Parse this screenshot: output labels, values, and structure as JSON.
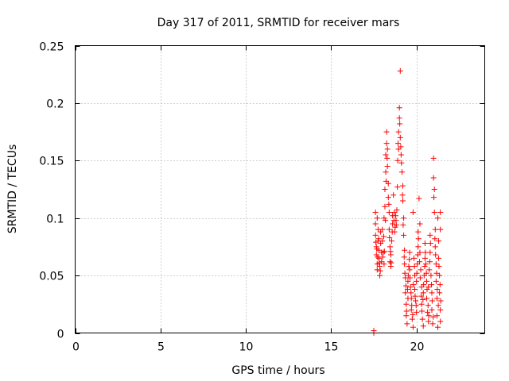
{
  "chart_data": {
    "type": "scatter",
    "title": "Day 317 of 2011, SRMTID for receiver mars",
    "xlabel": "GPS time / hours",
    "ylabel": "SRMTID / TECUs",
    "xlim": [
      0,
      24
    ],
    "ylim": [
      0,
      0.25
    ],
    "xticks": [
      0,
      5,
      10,
      15,
      20
    ],
    "xtick_labels": [
      "0",
      "5",
      "10",
      "15",
      "20"
    ],
    "yticks": [
      0,
      0.05,
      0.1,
      0.15,
      0.2,
      0.25
    ],
    "ytick_labels": [
      "0",
      "0.05",
      "0.1",
      "0.15",
      "0.2",
      "0.25"
    ],
    "grid": true,
    "marker": "+",
    "color": "#ff0000",
    "series": [
      {
        "name": "SRMTID",
        "points": [
          [
            17.5,
            0.0
          ],
          [
            17.5,
            0.002
          ],
          [
            17.6,
            0.105
          ],
          [
            17.6,
            0.095
          ],
          [
            17.6,
            0.085
          ],
          [
            17.65,
            0.075
          ],
          [
            17.65,
            0.068
          ],
          [
            17.7,
            0.06
          ],
          [
            17.7,
            0.055
          ],
          [
            17.7,
            0.1
          ],
          [
            17.75,
            0.09
          ],
          [
            17.75,
            0.08
          ],
          [
            17.8,
            0.072
          ],
          [
            17.8,
            0.065
          ],
          [
            17.85,
            0.058
          ],
          [
            17.85,
            0.05
          ],
          [
            17.9,
            0.088
          ],
          [
            17.9,
            0.078
          ],
          [
            17.95,
            0.07
          ],
          [
            17.95,
            0.062
          ],
          [
            18.0,
            0.08
          ],
          [
            18.0,
            0.09
          ],
          [
            18.05,
            0.07
          ],
          [
            18.1,
            0.06
          ],
          [
            18.1,
            0.1
          ],
          [
            18.15,
            0.11
          ],
          [
            18.15,
            0.125
          ],
          [
            18.2,
            0.14
          ],
          [
            18.2,
            0.155
          ],
          [
            18.25,
            0.165
          ],
          [
            18.25,
            0.175
          ],
          [
            18.3,
            0.16
          ],
          [
            18.3,
            0.145
          ],
          [
            18.35,
            0.13
          ],
          [
            18.35,
            0.118
          ],
          [
            18.4,
            0.105
          ],
          [
            18.4,
            0.09
          ],
          [
            18.45,
            0.075
          ],
          [
            18.45,
            0.062
          ],
          [
            18.5,
            0.058
          ],
          [
            18.5,
            0.068
          ],
          [
            18.55,
            0.08
          ],
          [
            18.6,
            0.095
          ],
          [
            18.6,
            0.102
          ],
          [
            18.65,
            0.12
          ],
          [
            18.7,
            0.105
          ],
          [
            18.75,
            0.092
          ],
          [
            18.8,
            0.098
          ],
          [
            18.85,
            0.107
          ],
          [
            18.9,
            0.15
          ],
          [
            18.95,
            0.16
          ],
          [
            18.95,
            0.175
          ],
          [
            19.0,
            0.187
          ],
          [
            19.0,
            0.196
          ],
          [
            19.05,
            0.228
          ],
          [
            19.05,
            0.17
          ],
          [
            19.1,
            0.155
          ],
          [
            19.15,
            0.14
          ],
          [
            19.2,
            0.128
          ],
          [
            19.2,
            0.115
          ],
          [
            19.25,
            0.1
          ],
          [
            19.25,
            0.085
          ],
          [
            19.3,
            0.072
          ],
          [
            19.3,
            0.06
          ],
          [
            19.35,
            0.048
          ],
          [
            19.35,
            0.035
          ],
          [
            19.4,
            0.025
          ],
          [
            19.4,
            0.015
          ],
          [
            19.45,
            0.008
          ],
          [
            19.5,
            0.03
          ],
          [
            19.5,
            0.045
          ],
          [
            19.55,
            0.058
          ],
          [
            19.6,
            0.07
          ],
          [
            19.6,
            0.055
          ],
          [
            19.65,
            0.04
          ],
          [
            19.7,
            0.03
          ],
          [
            19.7,
            0.02
          ],
          [
            19.75,
            0.012
          ],
          [
            19.8,
            0.005
          ],
          [
            19.8,
            0.105
          ],
          [
            19.85,
            0.065
          ],
          [
            19.9,
            0.05
          ],
          [
            19.9,
            0.038
          ],
          [
            19.95,
            0.028
          ],
          [
            20.0,
            0.018
          ],
          [
            20.0,
            0.045
          ],
          [
            20.05,
            0.06
          ],
          [
            20.1,
            0.075
          ],
          [
            20.1,
            0.088
          ],
          [
            20.15,
            0.117
          ],
          [
            20.2,
            0.095
          ],
          [
            20.2,
            0.07
          ],
          [
            20.25,
            0.055
          ],
          [
            20.3,
            0.04
          ],
          [
            20.3,
            0.025
          ],
          [
            20.35,
            0.012
          ],
          [
            20.4,
            0.006
          ],
          [
            20.4,
            0.035
          ],
          [
            20.45,
            0.05
          ],
          [
            20.5,
            0.065
          ],
          [
            20.5,
            0.078
          ],
          [
            20.55,
            0.06
          ],
          [
            20.6,
            0.045
          ],
          [
            20.6,
            0.03
          ],
          [
            20.65,
            0.018
          ],
          [
            20.7,
            0.01
          ],
          [
            20.7,
            0.04
          ],
          [
            20.75,
            0.055
          ],
          [
            20.8,
            0.085
          ],
          [
            20.8,
            0.07
          ],
          [
            20.85,
            0.05
          ],
          [
            20.9,
            0.035
          ],
          [
            20.9,
            0.02
          ],
          [
            20.95,
            0.008
          ],
          [
            21.0,
            0.152
          ],
          [
            21.0,
            0.135
          ],
          [
            21.05,
            0.125
          ],
          [
            21.05,
            0.105
          ],
          [
            21.1,
            0.09
          ],
          [
            21.1,
            0.075
          ],
          [
            21.15,
            0.06
          ],
          [
            21.15,
            0.045
          ],
          [
            21.2,
            0.03
          ],
          [
            21.2,
            0.015
          ],
          [
            21.25,
            0.005
          ],
          [
            21.25,
            0.1
          ],
          [
            21.3,
            0.08
          ],
          [
            21.3,
            0.065
          ],
          [
            21.35,
            0.05
          ],
          [
            21.35,
            0.035
          ],
          [
            21.4,
            0.02
          ],
          [
            21.4,
            0.01
          ],
          [
            21.4,
            0.105
          ],
          [
            21.4,
            0.09
          ],
          [
            17.62,
            0.079
          ],
          [
            17.68,
            0.073
          ],
          [
            17.72,
            0.066
          ],
          [
            17.78,
            0.082
          ],
          [
            17.82,
            0.061
          ],
          [
            17.88,
            0.054
          ],
          [
            18.02,
            0.066
          ],
          [
            18.08,
            0.084
          ],
          [
            18.12,
            0.071
          ],
          [
            18.18,
            0.098
          ],
          [
            18.22,
            0.132
          ],
          [
            18.28,
            0.152
          ],
          [
            18.38,
            0.112
          ],
          [
            18.42,
            0.083
          ],
          [
            18.48,
            0.071
          ],
          [
            18.52,
            0.061
          ],
          [
            18.58,
            0.088
          ],
          [
            18.68,
            0.098
          ],
          [
            18.72,
            0.088
          ],
          [
            18.78,
            0.102
          ],
          [
            18.82,
            0.094
          ],
          [
            18.88,
            0.127
          ],
          [
            18.92,
            0.165
          ],
          [
            19.02,
            0.182
          ],
          [
            19.08,
            0.162
          ],
          [
            19.12,
            0.148
          ],
          [
            19.18,
            0.12
          ],
          [
            19.22,
            0.094
          ],
          [
            19.28,
            0.066
          ],
          [
            19.32,
            0.052
          ],
          [
            19.38,
            0.041
          ],
          [
            19.42,
            0.019
          ],
          [
            19.48,
            0.038
          ],
          [
            19.52,
            0.05
          ],
          [
            19.58,
            0.064
          ],
          [
            19.62,
            0.048
          ],
          [
            19.68,
            0.035
          ],
          [
            19.72,
            0.024
          ],
          [
            19.78,
            0.016
          ],
          [
            19.82,
            0.042
          ],
          [
            19.88,
            0.058
          ],
          [
            19.92,
            0.032
          ],
          [
            19.98,
            0.024
          ],
          [
            20.02,
            0.052
          ],
          [
            20.08,
            0.068
          ],
          [
            20.12,
            0.082
          ],
          [
            20.18,
            0.062
          ],
          [
            20.22,
            0.048
          ],
          [
            20.28,
            0.032
          ],
          [
            20.32,
            0.019
          ],
          [
            20.38,
            0.029
          ],
          [
            20.42,
            0.042
          ],
          [
            20.48,
            0.058
          ],
          [
            20.52,
            0.07
          ],
          [
            20.58,
            0.052
          ],
          [
            20.62,
            0.038
          ],
          [
            20.68,
            0.024
          ],
          [
            20.72,
            0.015
          ],
          [
            20.78,
            0.062
          ],
          [
            20.82,
            0.078
          ],
          [
            20.88,
            0.042
          ],
          [
            20.92,
            0.028
          ],
          [
            20.98,
            0.014
          ],
          [
            21.02,
            0.118
          ],
          [
            21.08,
            0.082
          ],
          [
            21.12,
            0.068
          ],
          [
            21.18,
            0.052
          ],
          [
            21.22,
            0.038
          ],
          [
            21.28,
            0.024
          ],
          [
            21.32,
            0.058
          ],
          [
            21.38,
            0.042
          ],
          [
            21.42,
            0.028
          ]
        ]
      }
    ]
  }
}
